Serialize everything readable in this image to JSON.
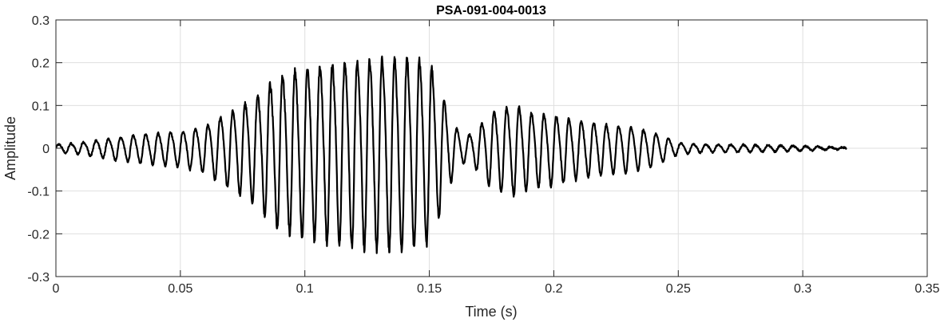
{
  "chart_data": {
    "type": "line",
    "title": "PSA-091-004-0013",
    "xlabel": "Time (s)",
    "ylabel": "Amplitude",
    "xlim": [
      0,
      0.35
    ],
    "ylim": [
      -0.3,
      0.3
    ],
    "xticks": [
      0,
      0.05,
      0.1,
      0.15,
      0.2,
      0.25,
      0.3,
      0.35
    ],
    "xtick_labels": [
      "0",
      "0.05",
      "0.1",
      "0.15",
      "0.2",
      "0.25",
      "0.3",
      "0.35"
    ],
    "yticks": [
      -0.3,
      -0.2,
      -0.1,
      0,
      0.1,
      0.2,
      0.3
    ],
    "ytick_labels": [
      "-0.3",
      "-0.2",
      "-0.1",
      "0",
      "0.1",
      "0.2",
      "0.3"
    ],
    "grid": true,
    "line_color": "#000000",
    "grid_color": "#dfdfdf",
    "series": [
      {
        "signal": "oscillating waveform, ~200 Hz",
        "sample_rate_hz": 8000,
        "duration_s": 0.3175,
        "oscillation_hz": 200,
        "envelope": {
          "t": [
            0,
            0.01,
            0.02,
            0.03,
            0.04,
            0.05,
            0.06,
            0.07,
            0.08,
            0.09,
            0.1,
            0.11,
            0.12,
            0.13,
            0.14,
            0.15,
            0.155,
            0.16,
            0.165,
            0.17,
            0.175,
            0.18,
            0.185,
            0.19,
            0.2,
            0.21,
            0.22,
            0.23,
            0.24,
            0.245,
            0.25,
            0.26,
            0.27,
            0.28,
            0.29,
            0.3,
            0.31,
            0.3175
          ],
          "amp": [
            0.01,
            0.015,
            0.025,
            0.035,
            0.04,
            0.045,
            0.06,
            0.1,
            0.14,
            0.2,
            0.22,
            0.23,
            0.24,
            0.245,
            0.25,
            0.235,
            0.15,
            0.06,
            0.03,
            0.06,
            0.1,
            0.11,
            0.115,
            0.1,
            0.09,
            0.075,
            0.065,
            0.06,
            0.045,
            0.03,
            0.015,
            0.01,
            0.01,
            0.009,
            0.008,
            0.006,
            0.004,
            0.002
          ]
        }
      }
    ]
  }
}
